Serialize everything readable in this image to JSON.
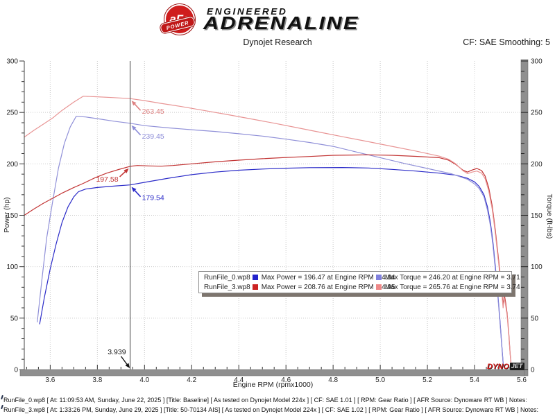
{
  "header": {
    "brand": {
      "badge_main": "aFe",
      "badge_sub": "POWER",
      "line1": "ENGINEERED",
      "line2": "ADRENALINE"
    },
    "title": "Dynojet Research",
    "cf_label": "CF: SAE Smoothing: 5"
  },
  "watermark": {
    "dyno": "DYNO",
    "jet": "JET"
  },
  "legend": {
    "rows": [
      {
        "name": "RunFile_0.wp8",
        "power_color": "#2222cc",
        "power_text": "Max Power = 196.47 at Engine RPM = 4.84",
        "torque_color": "#8080dd",
        "torque_text": "Max Torque = 246.20 at Engine RPM = 3.71"
      },
      {
        "name": "RunFile_3.wp8",
        "power_color": "#cc2222",
        "power_text": "Max Power = 208.76 at Engine RPM = 4.95",
        "torque_color": "#ee8888",
        "torque_text": "Max Torque = 265.76 at Engine RPM = 3.74"
      }
    ]
  },
  "footer": {
    "lines": [
      "RunFile_0.wp8 [ At: 11:09:53 AM, Sunday, June 22, 2025 ] [Title: Baseline]  [ As tested on Dynojet Model 224x ] [ CF: SAE 1.01 ] [ RPM: Gear Ratio ] [ AFR Source: Dynoware RT WB ] Notes:",
      "RunFile_3.wp8 [ At: 1:33:26 PM, Sunday, June 29, 2025 ] [Title: 50-70134 AIS]  [ As tested on Dynojet Model 224x ] [ CF: SAE 1.02 ] [ RPM: Gear Ratio ] [ AFR Source: Dynoware RT WB ] Notes:"
    ]
  },
  "chart_data": {
    "type": "line",
    "title": "Dynojet Research",
    "xlabel": "Engine RPM (rpmx1000)",
    "ylabel_left": "Power (hp)",
    "ylabel_right": "Torque (ft-lbs)",
    "xlim": [
      3.49,
      5.6
    ],
    "ylim": [
      0,
      300
    ],
    "x_ticks": [
      "3.6",
      "3.8",
      "4.0",
      "4.2",
      "4.4",
      "4.6",
      "4.8",
      "5.0",
      "5.2",
      "5.4",
      "5.6"
    ],
    "x_minor_step": 0.05,
    "y_ticks": [
      "0",
      "50",
      "100",
      "150",
      "200",
      "250",
      "300"
    ],
    "y_minor_step": 10,
    "grid": true,
    "cursor": {
      "x": 3.939,
      "label": "3.939",
      "readouts": [
        {
          "label": "263.45",
          "value": 263.45,
          "color": "#dd8080",
          "side": "right"
        },
        {
          "label": "239.45",
          "value": 239.45,
          "color": "#8c8cd8",
          "side": "right"
        },
        {
          "label": "197.58",
          "value": 197.58,
          "color": "#c23434",
          "side": "left"
        },
        {
          "label": "179.54",
          "value": 179.54,
          "color": "#2a2ac8",
          "side": "right"
        }
      ]
    },
    "series": [
      {
        "name": "RunFile_0 Power (hp)",
        "color": "#2a2ac8",
        "points": [
          [
            3.555,
            44
          ],
          [
            3.575,
            70
          ],
          [
            3.6,
            98
          ],
          [
            3.625,
            122
          ],
          [
            3.65,
            143
          ],
          [
            3.675,
            158
          ],
          [
            3.7,
            168
          ],
          [
            3.72,
            173
          ],
          [
            3.75,
            175.5
          ],
          [
            3.8,
            177
          ],
          [
            3.88,
            178.6
          ],
          [
            3.939,
            179.54
          ],
          [
            4.0,
            182
          ],
          [
            4.1,
            186
          ],
          [
            4.2,
            189.5
          ],
          [
            4.3,
            192
          ],
          [
            4.4,
            193.8
          ],
          [
            4.5,
            195
          ],
          [
            4.6,
            195.8
          ],
          [
            4.7,
            196.3
          ],
          [
            4.84,
            196.47
          ],
          [
            4.95,
            196
          ],
          [
            5.05,
            194.6
          ],
          [
            5.15,
            193
          ],
          [
            5.25,
            191
          ],
          [
            5.32,
            189
          ],
          [
            5.37,
            186
          ],
          [
            5.4,
            182.5
          ],
          [
            5.42,
            178
          ],
          [
            5.44,
            170
          ],
          [
            5.455,
            158
          ],
          [
            5.468,
            142
          ],
          [
            5.478,
            124
          ],
          [
            5.487,
            103
          ],
          [
            5.497,
            78
          ],
          [
            5.507,
            50
          ],
          [
            5.516,
            22
          ],
          [
            5.522,
            4
          ]
        ]
      },
      {
        "name": "RunFile_0 Torque (ft-lbs)",
        "color": "#9090d8",
        "points": [
          [
            3.545,
            46
          ],
          [
            3.565,
            88
          ],
          [
            3.585,
            128
          ],
          [
            3.61,
            163
          ],
          [
            3.635,
            196
          ],
          [
            3.66,
            220
          ],
          [
            3.685,
            236
          ],
          [
            3.71,
            246.2
          ],
          [
            3.75,
            245.6
          ],
          [
            3.8,
            244
          ],
          [
            3.87,
            241.5
          ],
          [
            3.939,
            239.45
          ],
          [
            4.0,
            237.2
          ],
          [
            4.1,
            235
          ],
          [
            4.2,
            233.2
          ],
          [
            4.3,
            231.5
          ],
          [
            4.4,
            229.3
          ],
          [
            4.5,
            227
          ],
          [
            4.6,
            224
          ],
          [
            4.7,
            220.8
          ],
          [
            4.8,
            217
          ],
          [
            4.9,
            211.5
          ],
          [
            5.0,
            206
          ],
          [
            5.1,
            200.5
          ],
          [
            5.2,
            195.5
          ],
          [
            5.3,
            190.5
          ],
          [
            5.37,
            185
          ],
          [
            5.4,
            180.5
          ],
          [
            5.42,
            176
          ],
          [
            5.44,
            168
          ],
          [
            5.455,
            155
          ],
          [
            5.468,
            139
          ],
          [
            5.478,
            121
          ],
          [
            5.487,
            100
          ],
          [
            5.497,
            76
          ],
          [
            5.507,
            48
          ],
          [
            5.516,
            21
          ],
          [
            5.522,
            3
          ]
        ]
      },
      {
        "name": "RunFile_3 Power (hp)",
        "color": "#c23434",
        "points": [
          [
            3.49,
            150
          ],
          [
            3.53,
            156
          ],
          [
            3.57,
            161.5
          ],
          [
            3.61,
            166.5
          ],
          [
            3.65,
            171.5
          ],
          [
            3.7,
            177
          ],
          [
            3.74,
            181
          ],
          [
            3.79,
            186.5
          ],
          [
            3.84,
            191
          ],
          [
            3.89,
            194.5
          ],
          [
            3.939,
            197.58
          ],
          [
            3.97,
            198.4
          ],
          [
            4.02,
            198
          ],
          [
            4.07,
            197.7
          ],
          [
            4.12,
            198.4
          ],
          [
            4.2,
            200
          ],
          [
            4.3,
            202
          ],
          [
            4.4,
            203.6
          ],
          [
            4.5,
            205
          ],
          [
            4.6,
            206.2
          ],
          [
            4.7,
            207.2
          ],
          [
            4.8,
            208.3
          ],
          [
            4.95,
            208.76
          ],
          [
            5.05,
            208.3
          ],
          [
            5.15,
            207.3
          ],
          [
            5.25,
            206
          ],
          [
            5.29,
            203.5
          ],
          [
            5.32,
            199.5
          ],
          [
            5.35,
            194
          ],
          [
            5.37,
            192
          ],
          [
            5.39,
            194
          ],
          [
            5.41,
            195.5
          ],
          [
            5.43,
            193.5
          ],
          [
            5.445,
            188
          ],
          [
            5.46,
            177
          ],
          [
            5.475,
            159
          ],
          [
            5.488,
            136
          ],
          [
            5.5,
            111
          ],
          [
            5.512,
            86
          ],
          [
            5.521,
            62
          ],
          [
            5.526,
            73
          ],
          [
            5.532,
            65
          ],
          [
            5.538,
            55
          ],
          [
            5.545,
            36
          ],
          [
            5.551,
            16
          ],
          [
            5.556,
            3
          ]
        ]
      },
      {
        "name": "RunFile_3 Torque (ft-lbs)",
        "color": "#e89494",
        "points": [
          [
            3.49,
            226
          ],
          [
            3.53,
            232.5
          ],
          [
            3.57,
            238.5
          ],
          [
            3.61,
            244.5
          ],
          [
            3.65,
            252
          ],
          [
            3.7,
            260
          ],
          [
            3.74,
            265.76
          ],
          [
            3.8,
            265.2
          ],
          [
            3.87,
            264.4
          ],
          [
            3.939,
            263.45
          ],
          [
            4.0,
            261.5
          ],
          [
            4.07,
            258.8
          ],
          [
            4.15,
            256
          ],
          [
            4.25,
            252
          ],
          [
            4.35,
            248
          ],
          [
            4.45,
            243.8
          ],
          [
            4.55,
            239.5
          ],
          [
            4.65,
            235
          ],
          [
            4.75,
            230.5
          ],
          [
            4.85,
            226
          ],
          [
            4.95,
            221.5
          ],
          [
            5.05,
            217
          ],
          [
            5.15,
            212.5
          ],
          [
            5.25,
            207.5
          ],
          [
            5.29,
            204.5
          ],
          [
            5.32,
            200
          ],
          [
            5.35,
            193.5
          ],
          [
            5.37,
            190.5
          ],
          [
            5.39,
            192
          ],
          [
            5.41,
            193
          ],
          [
            5.43,
            191
          ],
          [
            5.445,
            185.5
          ],
          [
            5.46,
            174
          ],
          [
            5.475,
            156
          ],
          [
            5.488,
            133
          ],
          [
            5.5,
            108
          ],
          [
            5.512,
            83
          ],
          [
            5.521,
            60
          ],
          [
            5.526,
            70
          ],
          [
            5.532,
            62
          ],
          [
            5.538,
            53
          ],
          [
            5.545,
            34
          ],
          [
            5.551,
            15
          ],
          [
            5.556,
            2
          ]
        ]
      }
    ]
  }
}
